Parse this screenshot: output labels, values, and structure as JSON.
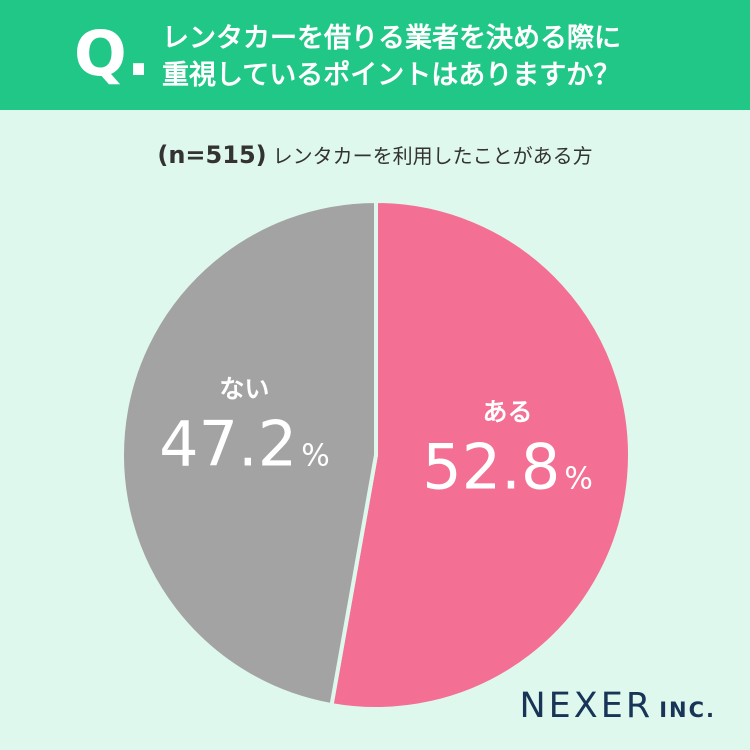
{
  "header": {
    "q_mark": "Q.",
    "question_line1": "レンタカーを借りる業者を決める際に",
    "question_line2": "重視しているポイントはありますか？"
  },
  "sample": {
    "n_label": "(n=515)",
    "description": "レンタカーを利用したことがある方"
  },
  "colors": {
    "header_bg": "#21c787",
    "page_bg": "#dff8ee",
    "yes_slice": "#f36f93",
    "no_slice": "#a3a3a3"
  },
  "chart_data": {
    "type": "pie",
    "slices": [
      {
        "label": "ある",
        "value": 52.8,
        "value_text": "52.8",
        "unit": "%",
        "color": "#f36f93"
      },
      {
        "label": "ない",
        "value": 47.2,
        "value_text": "47.2",
        "unit": "%",
        "color": "#a3a3a3"
      }
    ]
  },
  "logo": {
    "main": "NEXER",
    "suffix": "INC."
  }
}
